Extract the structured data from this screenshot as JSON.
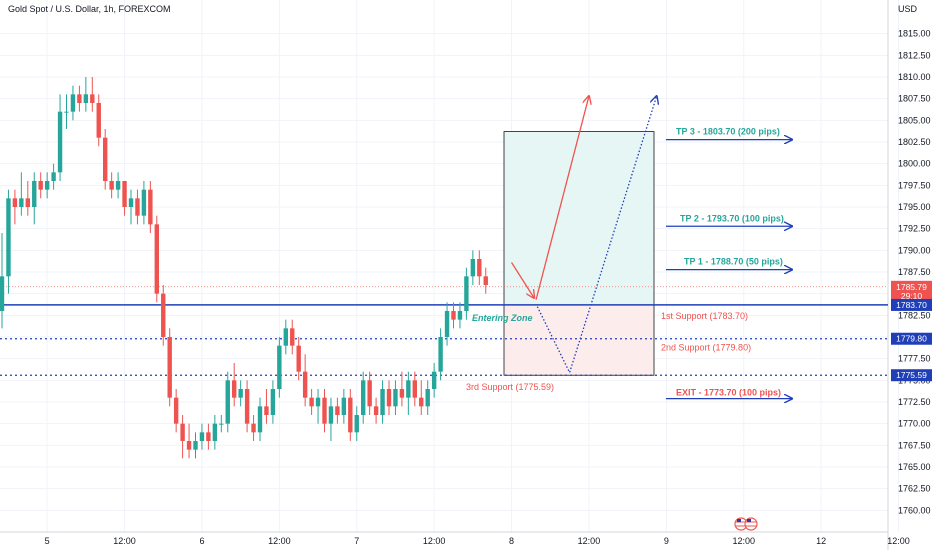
{
  "header": {
    "symbol_title": "Gold Spot / U.S. Dollar, 1h, FOREXCOM",
    "currency": "USD"
  },
  "colors": {
    "up": "#26a69a",
    "down": "#ef5350",
    "level_line": "#1f3fb8",
    "support_text": "#ef5350",
    "tp_text": "#26a69a",
    "arrow_blue": "#1f3fb8",
    "arrow_red": "#ef5350",
    "zone_profit": "#e6f6f4",
    "zone_loss": "#fdecec",
    "price_tag": "#ef5350",
    "level_tag": "#1f3fb8"
  },
  "price_tags": {
    "current_price": "1785.79",
    "countdown": "29:10",
    "level1": "1783.70",
    "level2": "1779.80",
    "level3": "1775.59"
  },
  "annotations": {
    "entering_zone": "Entering Zone",
    "support1": "1st Support (1783.70)",
    "support2": "2nd Support (1779.80)",
    "support3": "3rd Support (1775.59)",
    "tp3": "TP 3 - 1803.70 (200 pips)",
    "tp2": "TP 2 - 1793.70 (100 pips)",
    "tp1": "TP 1 - 1788.70 (50 pips)",
    "exit": "EXIT - 1773.70 (100 pips)"
  },
  "chart_data": {
    "type": "candlestick",
    "title": "Gold Spot / U.S. Dollar, 1h, FOREXCOM",
    "ylabel": "USD",
    "ylim": [
      1757.5,
      1817.5
    ],
    "y_ticks": [
      "1760.00",
      "1762.50",
      "1765.00",
      "1767.50",
      "1770.00",
      "1772.50",
      "1775.00",
      "1777.50",
      "1780.00",
      "1782.50",
      "1785.00",
      "1787.50",
      "1790.00",
      "1792.50",
      "1795.00",
      "1797.50",
      "1800.00",
      "1802.50",
      "1805.00",
      "1807.50",
      "1810.00",
      "1812.50",
      "1815.00"
    ],
    "x_tick_labels": [
      "5",
      "12:00",
      "6",
      "12:00",
      "7",
      "12:00",
      "8",
      "12:00",
      "9",
      "12:00",
      "12",
      "12:00"
    ],
    "x_tick_index": [
      7,
      19,
      31,
      43,
      55,
      67,
      79,
      91,
      103,
      115,
      127,
      139
    ],
    "candles": [
      {
        "o": 1783,
        "h": 1792,
        "l": 1781,
        "c": 1787
      },
      {
        "o": 1787,
        "h": 1797,
        "l": 1785,
        "c": 1796
      },
      {
        "o": 1796,
        "h": 1797,
        "l": 1793,
        "c": 1795
      },
      {
        "o": 1795,
        "h": 1799,
        "l": 1794,
        "c": 1796
      },
      {
        "o": 1796,
        "h": 1798,
        "l": 1794,
        "c": 1795
      },
      {
        "o": 1795,
        "h": 1799,
        "l": 1793,
        "c": 1798
      },
      {
        "o": 1798,
        "h": 1799,
        "l": 1796,
        "c": 1797
      },
      {
        "o": 1797,
        "h": 1799,
        "l": 1796,
        "c": 1798
      },
      {
        "o": 1798,
        "h": 1800,
        "l": 1797,
        "c": 1799
      },
      {
        "o": 1799,
        "h": 1808,
        "l": 1798,
        "c": 1806
      },
      {
        "o": 1806,
        "h": 1808,
        "l": 1804,
        "c": 1806
      },
      {
        "o": 1806,
        "h": 1809,
        "l": 1805,
        "c": 1808
      },
      {
        "o": 1808,
        "h": 1809,
        "l": 1806,
        "c": 1807
      },
      {
        "o": 1807,
        "h": 1810,
        "l": 1806,
        "c": 1808
      },
      {
        "o": 1808,
        "h": 1810,
        "l": 1806,
        "c": 1807
      },
      {
        "o": 1807,
        "h": 1808,
        "l": 1802,
        "c": 1803
      },
      {
        "o": 1803,
        "h": 1804,
        "l": 1797,
        "c": 1798
      },
      {
        "o": 1798,
        "h": 1799,
        "l": 1796,
        "c": 1797
      },
      {
        "o": 1797,
        "h": 1799,
        "l": 1796,
        "c": 1798
      },
      {
        "o": 1798,
        "h": 1798,
        "l": 1794,
        "c": 1795
      },
      {
        "o": 1795,
        "h": 1797,
        "l": 1793,
        "c": 1796
      },
      {
        "o": 1796,
        "h": 1797,
        "l": 1793,
        "c": 1794
      },
      {
        "o": 1794,
        "h": 1798,
        "l": 1793,
        "c": 1797
      },
      {
        "o": 1797,
        "h": 1798,
        "l": 1792,
        "c": 1793
      },
      {
        "o": 1793,
        "h": 1794,
        "l": 1784,
        "c": 1785
      },
      {
        "o": 1785,
        "h": 1786,
        "l": 1779,
        "c": 1780
      },
      {
        "o": 1780,
        "h": 1781,
        "l": 1772,
        "c": 1773
      },
      {
        "o": 1773,
        "h": 1774,
        "l": 1769,
        "c": 1770
      },
      {
        "o": 1770,
        "h": 1771,
        "l": 1766,
        "c": 1768
      },
      {
        "o": 1768,
        "h": 1770,
        "l": 1766,
        "c": 1767
      },
      {
        "o": 1767,
        "h": 1769,
        "l": 1766,
        "c": 1768
      },
      {
        "o": 1768,
        "h": 1770,
        "l": 1767,
        "c": 1769
      },
      {
        "o": 1769,
        "h": 1770,
        "l": 1767,
        "c": 1768
      },
      {
        "o": 1768,
        "h": 1771,
        "l": 1767,
        "c": 1770
      },
      {
        "o": 1770,
        "h": 1771,
        "l": 1769,
        "c": 1770
      },
      {
        "o": 1770,
        "h": 1776,
        "l": 1769,
        "c": 1775
      },
      {
        "o": 1775,
        "h": 1777,
        "l": 1772,
        "c": 1773
      },
      {
        "o": 1773,
        "h": 1775,
        "l": 1772,
        "c": 1774
      },
      {
        "o": 1774,
        "h": 1775,
        "l": 1769,
        "c": 1770
      },
      {
        "o": 1770,
        "h": 1771,
        "l": 1768,
        "c": 1769
      },
      {
        "o": 1769,
        "h": 1773,
        "l": 1768,
        "c": 1772
      },
      {
        "o": 1772,
        "h": 1774,
        "l": 1770,
        "c": 1771
      },
      {
        "o": 1771,
        "h": 1775,
        "l": 1770,
        "c": 1774
      },
      {
        "o": 1774,
        "h": 1780,
        "l": 1773,
        "c": 1779
      },
      {
        "o": 1779,
        "h": 1782,
        "l": 1778,
        "c": 1781
      },
      {
        "o": 1781,
        "h": 1782,
        "l": 1778,
        "c": 1779
      },
      {
        "o": 1779,
        "h": 1780,
        "l": 1775,
        "c": 1776
      },
      {
        "o": 1776,
        "h": 1778,
        "l": 1772,
        "c": 1773
      },
      {
        "o": 1773,
        "h": 1774,
        "l": 1771,
        "c": 1772
      },
      {
        "o": 1772,
        "h": 1774,
        "l": 1770,
        "c": 1773
      },
      {
        "o": 1773,
        "h": 1774,
        "l": 1769,
        "c": 1770
      },
      {
        "o": 1770,
        "h": 1773,
        "l": 1768,
        "c": 1772
      },
      {
        "o": 1772,
        "h": 1773,
        "l": 1770,
        "c": 1771
      },
      {
        "o": 1771,
        "h": 1774,
        "l": 1770,
        "c": 1773
      },
      {
        "o": 1773,
        "h": 1774,
        "l": 1768,
        "c": 1769
      },
      {
        "o": 1769,
        "h": 1772,
        "l": 1768,
        "c": 1771
      },
      {
        "o": 1771,
        "h": 1776,
        "l": 1770,
        "c": 1775
      },
      {
        "o": 1775,
        "h": 1776,
        "l": 1771,
        "c": 1772
      },
      {
        "o": 1772,
        "h": 1773,
        "l": 1770,
        "c": 1771
      },
      {
        "o": 1771,
        "h": 1775,
        "l": 1770,
        "c": 1774
      },
      {
        "o": 1774,
        "h": 1775,
        "l": 1771,
        "c": 1772
      },
      {
        "o": 1772,
        "h": 1775,
        "l": 1771,
        "c": 1774
      },
      {
        "o": 1774,
        "h": 1776,
        "l": 1772,
        "c": 1773
      },
      {
        "o": 1773,
        "h": 1776,
        "l": 1771,
        "c": 1775
      },
      {
        "o": 1775,
        "h": 1776,
        "l": 1772,
        "c": 1773
      },
      {
        "o": 1773,
        "h": 1775,
        "l": 1771,
        "c": 1772
      },
      {
        "o": 1772,
        "h": 1775,
        "l": 1771,
        "c": 1774
      },
      {
        "o": 1774,
        "h": 1777,
        "l": 1773,
        "c": 1776
      },
      {
        "o": 1776,
        "h": 1781,
        "l": 1775,
        "c": 1780
      },
      {
        "o": 1780,
        "h": 1784,
        "l": 1779,
        "c": 1783
      },
      {
        "o": 1783,
        "h": 1784,
        "l": 1781,
        "c": 1782
      },
      {
        "o": 1782,
        "h": 1784,
        "l": 1781,
        "c": 1783
      },
      {
        "o": 1783,
        "h": 1788,
        "l": 1782,
        "c": 1787
      },
      {
        "o": 1787,
        "h": 1790,
        "l": 1786,
        "c": 1789
      },
      {
        "o": 1789,
        "h": 1790,
        "l": 1786,
        "c": 1787
      },
      {
        "o": 1787,
        "h": 1788,
        "l": 1785,
        "c": 1786
      }
    ]
  }
}
